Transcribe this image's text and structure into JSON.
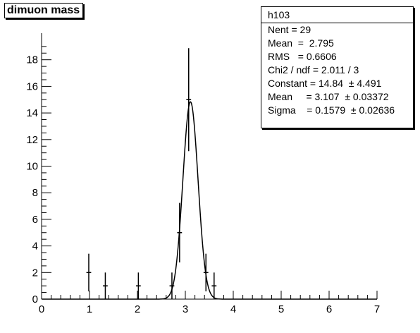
{
  "chart_data": {
    "type": "histogram",
    "title": "dimuon mass",
    "xlabel": "",
    "ylabel": "",
    "xlim": [
      0,
      7
    ],
    "ylim": [
      0,
      20
    ],
    "x_ticks": [
      "0",
      "1",
      "2",
      "3",
      "4",
      "5",
      "6",
      "7"
    ],
    "y_ticks": [
      "0",
      "2",
      "4",
      "6",
      "8",
      "10",
      "12",
      "14",
      "16",
      "18"
    ],
    "bins": [
      {
        "x": 0.985,
        "y": 2,
        "err": 1.414,
        "halfwidth": 0.05
      },
      {
        "x": 1.33,
        "y": 1,
        "err": 1.0,
        "halfwidth": 0.05
      },
      {
        "x": 2.02,
        "y": 1,
        "err": 1.0,
        "halfwidth": 0.05
      },
      {
        "x": 2.72,
        "y": 1,
        "err": 1.0,
        "halfwidth": 0.05
      },
      {
        "x": 2.88,
        "y": 5,
        "err": 2.236,
        "halfwidth": 0.05
      },
      {
        "x": 3.07,
        "y": 15,
        "err": 3.873,
        "halfwidth": 0.05
      },
      {
        "x": 3.43,
        "y": 2,
        "err": 1.414,
        "halfwidth": 0.05
      },
      {
        "x": 3.6,
        "y": 1,
        "err": 1.0,
        "halfwidth": 0.05
      }
    ],
    "fit": {
      "function": "gaus",
      "constant": 14.84,
      "mean": 3.107,
      "sigma": 0.1579
    },
    "grid": false
  },
  "stats": {
    "name": "h103",
    "rows": [
      "Nent = 29",
      "Mean  =  2.795",
      "RMS   = 0.6606",
      "Chi2 / ndf = 2.011 / 3",
      "Constant = 14.84  ± 4.491",
      "Mean     = 3.107  ± 0.03372",
      "Sigma    = 0.1579  ± 0.02636"
    ]
  },
  "colors": {
    "axis": "#000000",
    "background": "#ffffff"
  }
}
